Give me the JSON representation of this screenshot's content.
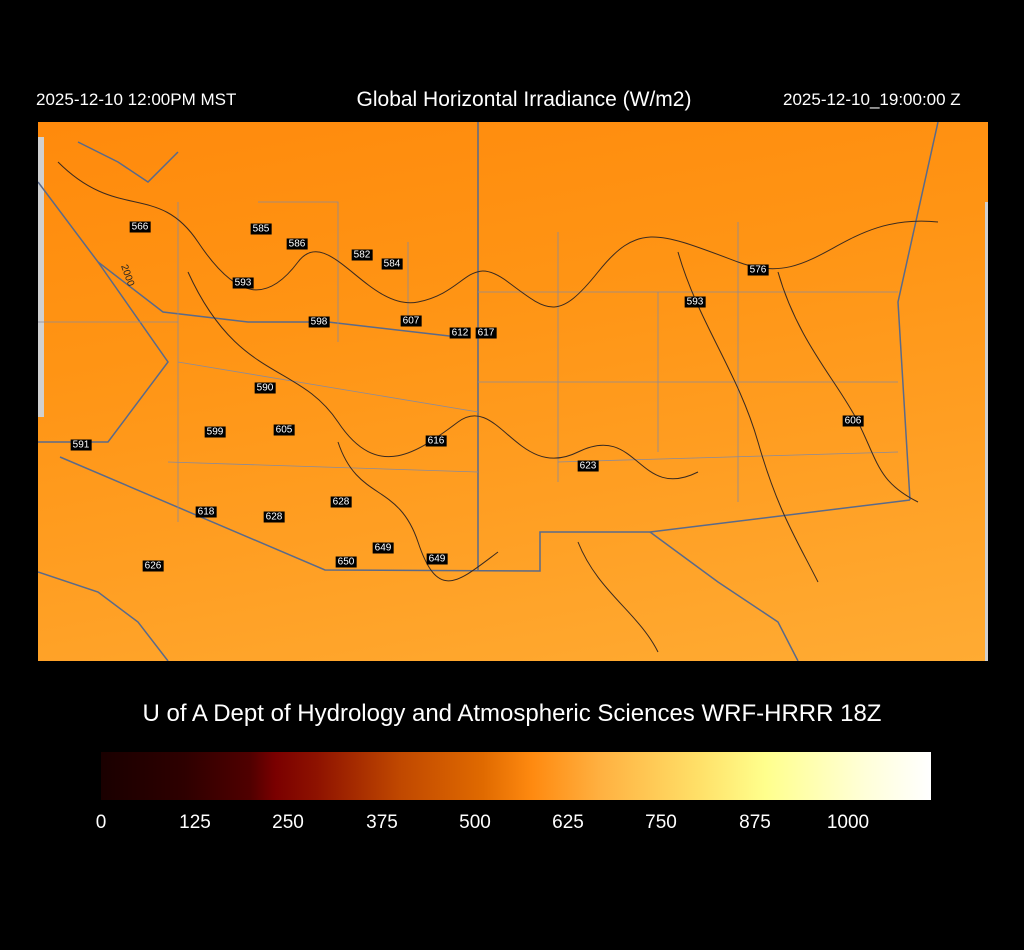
{
  "header": {
    "local_time": "2025-12-10 12:00PM MST",
    "title": "Global Horizontal Irradiance (W/m2)",
    "utc_time": "2025-12-10_19:00:00 Z"
  },
  "map": {
    "contour_label": "2000",
    "stations": [
      "566",
      "585",
      "586",
      "582",
      "584",
      "593",
      "598",
      "607",
      "612",
      "617",
      "576",
      "593",
      "590",
      "599",
      "605",
      "616",
      "591",
      "623",
      "606",
      "618",
      "628",
      "628",
      "649",
      "650",
      "649",
      "626"
    ]
  },
  "footer": {
    "credit": "U of A Dept of Hydrology and Atmospheric Sciences WRF-HRRR 18Z"
  },
  "colorbar": {
    "ticks": [
      "0",
      "125",
      "250",
      "375",
      "500",
      "625",
      "750",
      "875",
      "1000"
    ],
    "colors": [
      "#1a0000",
      "#7a0000",
      "#e06a00",
      "#ff8a10",
      "#ffe068",
      "#ffff8c",
      "#ffffff"
    ]
  }
}
